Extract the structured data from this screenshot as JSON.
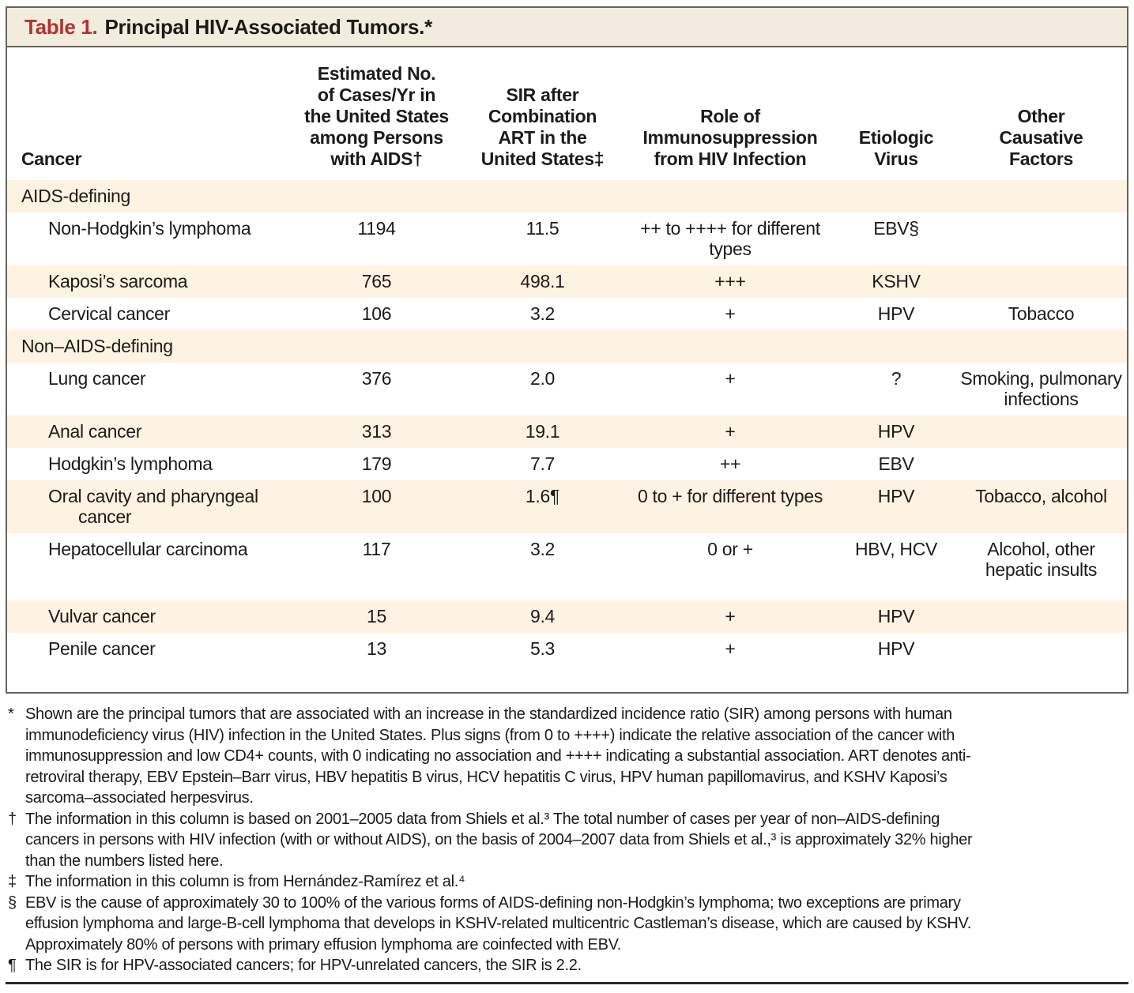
{
  "colors": {
    "accent_red": "#b5312d",
    "stripe_cream": "#fdf3e2",
    "titlebar_cream": "#f2ecdf",
    "border_gray": "#67645c",
    "rule_dark": "#2b2a28"
  },
  "table": {
    "label": "Table 1.",
    "title": "Principal HIV-Associated Tumors.*",
    "columns": {
      "cancer": "Cancer",
      "cases": "Estimated No.\nof Cases/Yr in\nthe United States\namong Persons\nwith AIDS†",
      "sir": "SIR after\nCombination\nART in the\nUnited States‡",
      "immuno": "Role of\nImmunosuppression\nfrom HIV Infection",
      "virus": "Etiologic\nVirus",
      "other": "Other\nCausative\nFactors"
    },
    "rows": [
      {
        "name": "AIDS-defining",
        "cases": "",
        "sir": "",
        "immuno": "",
        "virus": "",
        "other": ""
      },
      {
        "name": "Non-Hodgkin’s lymphoma",
        "cases": "1194",
        "sir": "11.5",
        "immuno": "++ to ++++ for different\ntypes",
        "virus": "EBV§",
        "other": ""
      },
      {
        "name": "Kaposi’s sarcoma",
        "cases": "765",
        "sir": "498.1",
        "immuno": "+++",
        "virus": "KSHV",
        "other": ""
      },
      {
        "name": "Cervical cancer",
        "cases": "106",
        "sir": "3.2",
        "immuno": "+",
        "virus": "HPV",
        "other": "Tobacco"
      },
      {
        "name": "Non–AIDS-defining",
        "cases": "",
        "sir": "",
        "immuno": "",
        "virus": "",
        "other": ""
      },
      {
        "name": "Lung cancer",
        "cases": "376",
        "sir": "2.0",
        "immuno": "+",
        "virus": "?",
        "other": "Smoking, pulmonary\ninfections"
      },
      {
        "name": "Anal cancer",
        "cases": "313",
        "sir": "19.1",
        "immuno": "+",
        "virus": "HPV",
        "other": ""
      },
      {
        "name": "Hodgkin’s lymphoma",
        "cases": "179",
        "sir": "7.7",
        "immuno": "++",
        "virus": "EBV",
        "other": ""
      },
      {
        "name": "Oral cavity and pharyngeal\ncancer",
        "cases": "100",
        "sir": "1.6¶",
        "immuno": "0 to + for different types",
        "virus": "HPV",
        "other": "Tobacco, alcohol"
      },
      {
        "name": "Hepatocellular carcinoma",
        "cases": "117",
        "sir": "3.2",
        "immuno": "0 or +",
        "virus": "HBV, HCV",
        "other": "Alcohol, other\nhepatic insults"
      },
      {
        "name": "Vulvar cancer",
        "cases": "15",
        "sir": "9.4",
        "immuno": "+",
        "virus": "HPV",
        "other": ""
      },
      {
        "name": "Penile cancer",
        "cases": "13",
        "sir": "5.3",
        "immuno": "+",
        "virus": "HPV",
        "other": ""
      }
    ]
  },
  "footnotes": [
    {
      "symbol": "*",
      "text": "Shown are the principal tumors that are associated with an increase in the standardized incidence ratio (SIR) among persons with human\nimmunodeficiency virus (HIV) infection in the United States. Plus signs (from 0 to ++++) indicate the relative association of the cancer with\nimmunosuppression and low CD4+ counts, with 0 indicating no association and ++++ indicating a substantial association. ART denotes anti-\nretroviral therapy, EBV Epstein–Barr virus, HBV hepatitis B virus, HCV hepatitis C virus, HPV human papillomavirus, and KSHV Kaposi’s\nsarcoma–associated herpesvirus."
    },
    {
      "symbol": "†",
      "text": "The information in this column is based on 2001–2005 data from Shiels et al.³ The total number of cases per year of non–AIDS-defining\ncancers in persons with HIV infection (with or without AIDS), on the basis of 2004–2007 data from Shiels et al.,³ is approximately 32% higher\nthan the numbers listed here."
    },
    {
      "symbol": "‡",
      "text": "The information in this column is from Hernández-Ramírez et al.⁴"
    },
    {
      "symbol": "§",
      "text": "EBV is the cause of approximately 30 to 100% of the various forms of AIDS-defining non-Hodgkin’s lymphoma; two exceptions are primary\neffusion lymphoma and large-B-cell lymphoma that develops in KSHV-related multicentric Castleman’s disease, which are caused by KSHV.\nApproximately 80% of persons with primary effusion lymphoma are coinfected with EBV."
    },
    {
      "symbol": "¶",
      "text": "The SIR is for HPV-associated cancers; for HPV-unrelated cancers, the SIR is 2.2."
    }
  ]
}
